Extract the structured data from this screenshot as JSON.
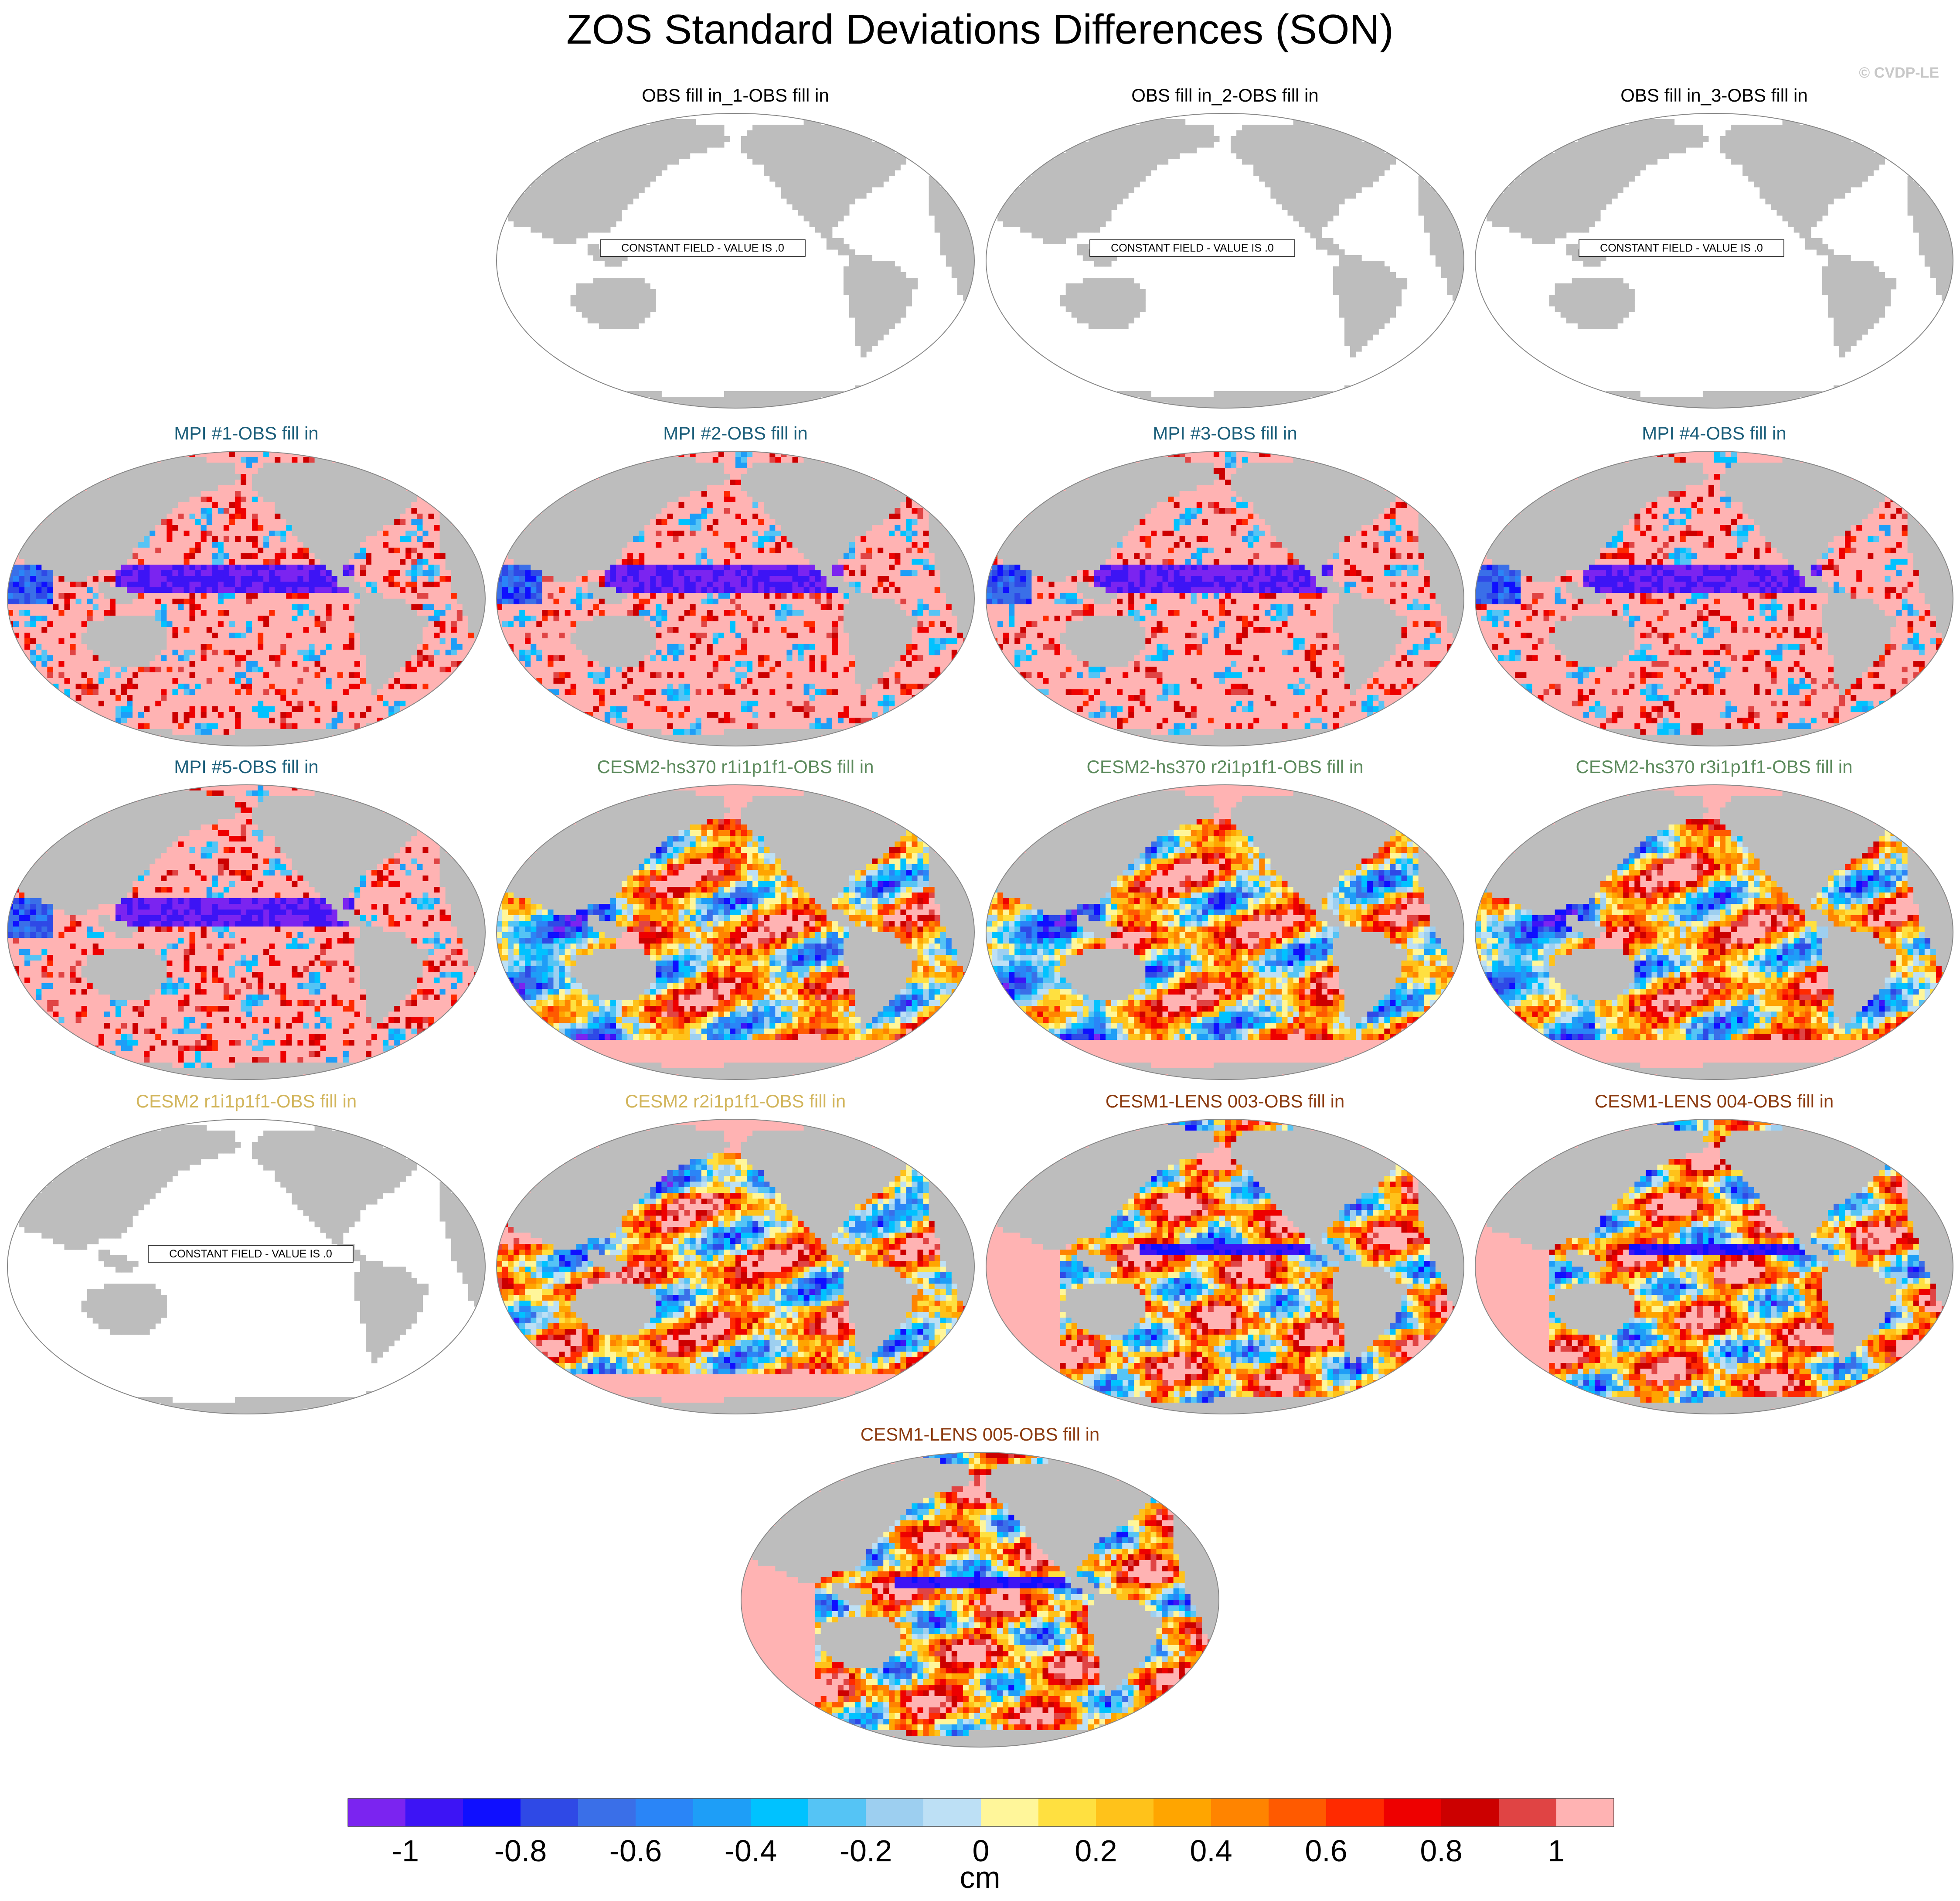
{
  "figure": {
    "title": "ZOS Standard Deviations Differences (SON)",
    "watermark": "© CVDP-LE"
  },
  "colors": {
    "land": "#bdbdbd",
    "ocean_constant": "#ffffff",
    "mpi_title": "#1b5e7a",
    "cesm2_hs370_title": "#5c8a5c",
    "cesm2_title": "#d2b55b",
    "cesm1_title": "#8b3a0f",
    "obs_title": "#000000"
  },
  "panels": [
    {
      "title": "OBS fill in_1-OBS fill in",
      "group": "obs",
      "constant_label": "CONSTANT FIELD - VALUE IS .0",
      "pattern": "constant"
    },
    {
      "title": "OBS fill in_2-OBS fill in",
      "group": "obs",
      "constant_label": "CONSTANT FIELD - VALUE IS .0",
      "pattern": "constant"
    },
    {
      "title": "OBS fill in_3-OBS fill in",
      "group": "obs",
      "constant_label": "CONSTANT FIELD - VALUE IS .0",
      "pattern": "constant"
    },
    {
      "title": "MPI #1-OBS fill in",
      "group": "mpi",
      "constant_label": "",
      "pattern": "mpi"
    },
    {
      "title": "MPI #2-OBS fill in",
      "group": "mpi",
      "constant_label": "",
      "pattern": "mpi"
    },
    {
      "title": "MPI #3-OBS fill in",
      "group": "mpi",
      "constant_label": "",
      "pattern": "mpi"
    },
    {
      "title": "MPI #4-OBS fill in",
      "group": "mpi",
      "constant_label": "",
      "pattern": "mpi"
    },
    {
      "title": "MPI #5-OBS fill in",
      "group": "mpi",
      "constant_label": "",
      "pattern": "mpi"
    },
    {
      "title": "CESM2-hs370 r1i1p1f1-OBS fill in",
      "group": "cesm2_hs370",
      "constant_label": "",
      "pattern": "cesm2"
    },
    {
      "title": "CESM2-hs370 r2i1p1f1-OBS fill in",
      "group": "cesm2_hs370",
      "constant_label": "",
      "pattern": "cesm2"
    },
    {
      "title": "CESM2-hs370 r3i1p1f1-OBS fill in",
      "group": "cesm2_hs370",
      "constant_label": "",
      "pattern": "cesm2"
    },
    {
      "title": "CESM2 r1i1p1f1-OBS fill in",
      "group": "cesm2",
      "constant_label": "CONSTANT FIELD - VALUE IS .0",
      "pattern": "constant"
    },
    {
      "title": "CESM2 r2i1p1f1-OBS fill in",
      "group": "cesm2",
      "constant_label": "",
      "pattern": "cesm2b"
    },
    {
      "title": "CESM1-LENS 003-OBS fill in",
      "group": "cesm1",
      "constant_label": "",
      "pattern": "cesm1"
    },
    {
      "title": "CESM1-LENS 004-OBS fill in",
      "group": "cesm1",
      "constant_label": "",
      "pattern": "cesm1"
    },
    {
      "title": "CESM1-LENS 005-OBS fill in",
      "group": "cesm1",
      "constant_label": "",
      "pattern": "cesm1"
    }
  ],
  "colorbar": {
    "unit": "cm",
    "colors": [
      "#7b24f0",
      "#3d14f5",
      "#0f0fff",
      "#2f49e6",
      "#3a6fe8",
      "#2a85f7",
      "#1e9ef7",
      "#00c2ff",
      "#55c4f5",
      "#9dcff0",
      "#bde0f5",
      "#fff69a",
      "#ffe040",
      "#ffc21a",
      "#ffa500",
      "#ff8400",
      "#ff5a00",
      "#ff2a00",
      "#ee0000",
      "#cc0000",
      "#e04444",
      "#ffb3b3"
    ],
    "tick_labels": [
      "-1",
      "-0.8",
      "-0.6",
      "-0.4",
      "-0.2",
      "0",
      "0.2",
      "0.4",
      "0.6",
      "0.8",
      "1"
    ],
    "tick_boundary_index": [
      1,
      3,
      5,
      7,
      9,
      11,
      13,
      15,
      17,
      19,
      21
    ]
  }
}
